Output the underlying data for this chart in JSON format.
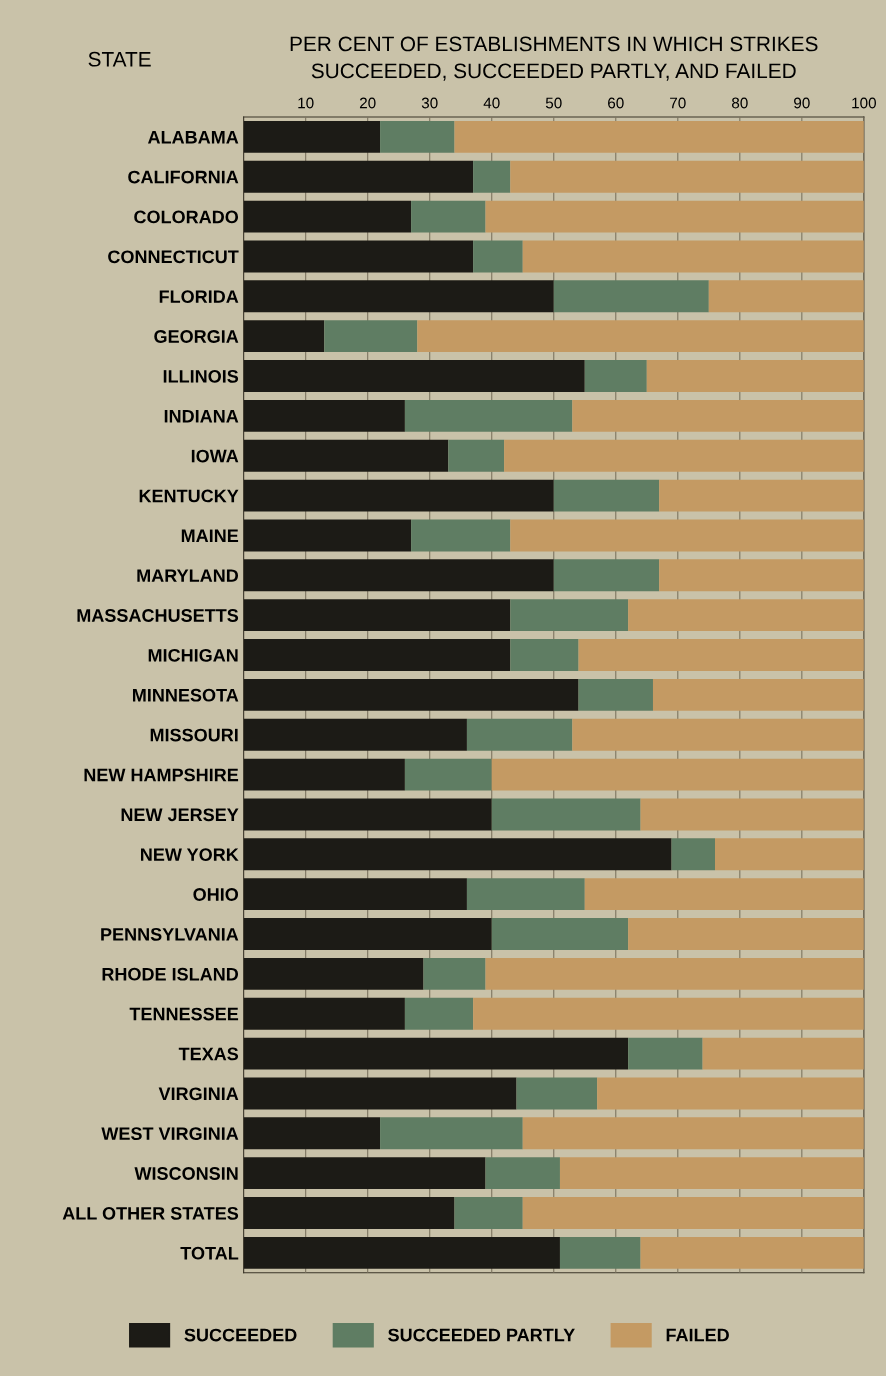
{
  "chart_data": {
    "type": "bar",
    "orientation": "horizontal",
    "stacked": true,
    "title": "PER CENT OF ESTABLISHMENTS IN WHICH STRIKES\nSUCCEEDED, SUCCEEDED PARTLY, AND FAILED",
    "ylabel": "STATE",
    "categories": [
      "ALABAMA",
      "CALIFORNIA",
      "COLORADO",
      "CONNECTICUT",
      "FLORIDA",
      "GEORGIA",
      "ILLINOIS",
      "INDIANA",
      "IOWA",
      "KENTUCKY",
      "MAINE",
      "MARYLAND",
      "MASSACHUSETTS",
      "MICHIGAN",
      "MINNESOTA",
      "MISSOURI",
      "NEW HAMPSHIRE",
      "NEW JERSEY",
      "NEW YORK",
      "OHIO",
      "PENNSYLVANIA",
      "RHODE ISLAND",
      "TENNESSEE",
      "TEXAS",
      "VIRGINIA",
      "WEST VIRGINIA",
      "WISCONSIN",
      "ALL OTHER STATES",
      "TOTAL"
    ],
    "series": [
      {
        "name": "SUCCEEDED",
        "color": "#1c1b16",
        "values": [
          22,
          37,
          27,
          37,
          50,
          13,
          55,
          26,
          33,
          50,
          27,
          50,
          43,
          43,
          54,
          36,
          26,
          40,
          69,
          36,
          40,
          29,
          26,
          62,
          44,
          22,
          39,
          34,
          51
        ]
      },
      {
        "name": "SUCCEEDED PARTLY",
        "color": "#5f7d63",
        "values": [
          12,
          6,
          12,
          8,
          25,
          15,
          10,
          27,
          9,
          17,
          16,
          17,
          19,
          11,
          12,
          17,
          14,
          24,
          7,
          19,
          22,
          10,
          11,
          12,
          13,
          23,
          12,
          11,
          13
        ]
      },
      {
        "name": "FAILED",
        "color": "#c49a63",
        "values": [
          66,
          57,
          61,
          55,
          25,
          72,
          35,
          47,
          58,
          33,
          57,
          33,
          38,
          46,
          34,
          47,
          60,
          36,
          24,
          45,
          38,
          61,
          63,
          26,
          43,
          55,
          49,
          55,
          36
        ]
      }
    ],
    "xlim": [
      0,
      100
    ],
    "xticks": [
      10,
      20,
      30,
      40,
      50,
      60,
      70,
      80,
      90,
      100
    ],
    "grid": "x",
    "legend": "bottom"
  }
}
